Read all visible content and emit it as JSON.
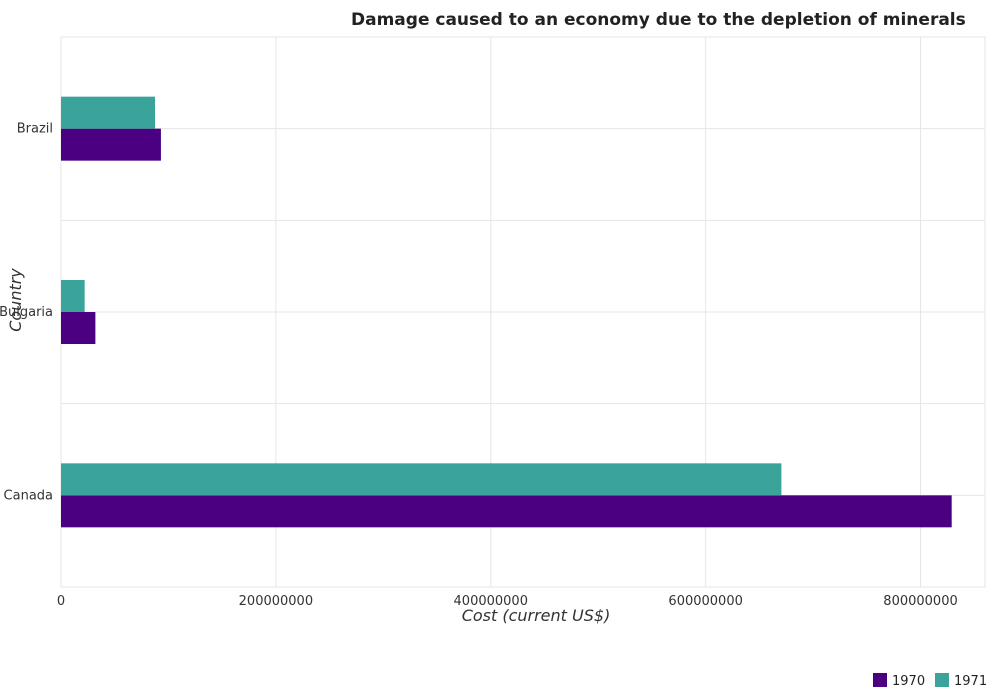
{
  "chart_data": {
    "type": "bar",
    "orientation": "horizontal",
    "title": "Damage caused to an economy due to the depletion of minerals",
    "xlabel": "Cost (current US$)",
    "ylabel": "Country",
    "categories": [
      "Brazil",
      "Bulgaria",
      "Canada"
    ],
    "series": [
      {
        "name": "1970",
        "color": "#4b0082",
        "values": [
          93000000,
          32000000,
          829000000
        ]
      },
      {
        "name": "1971",
        "color": "#3aa39a",
        "values": [
          87500000,
          22000000,
          670500000
        ]
      }
    ],
    "xlim": [
      0,
      860000000
    ],
    "xticks": [
      0,
      200000000,
      400000000,
      600000000,
      800000000
    ],
    "xtick_labels": [
      "0",
      "200000000",
      "400000000",
      "600000000",
      "800000000"
    ],
    "grid": true,
    "legend_position": "bottom-right"
  }
}
